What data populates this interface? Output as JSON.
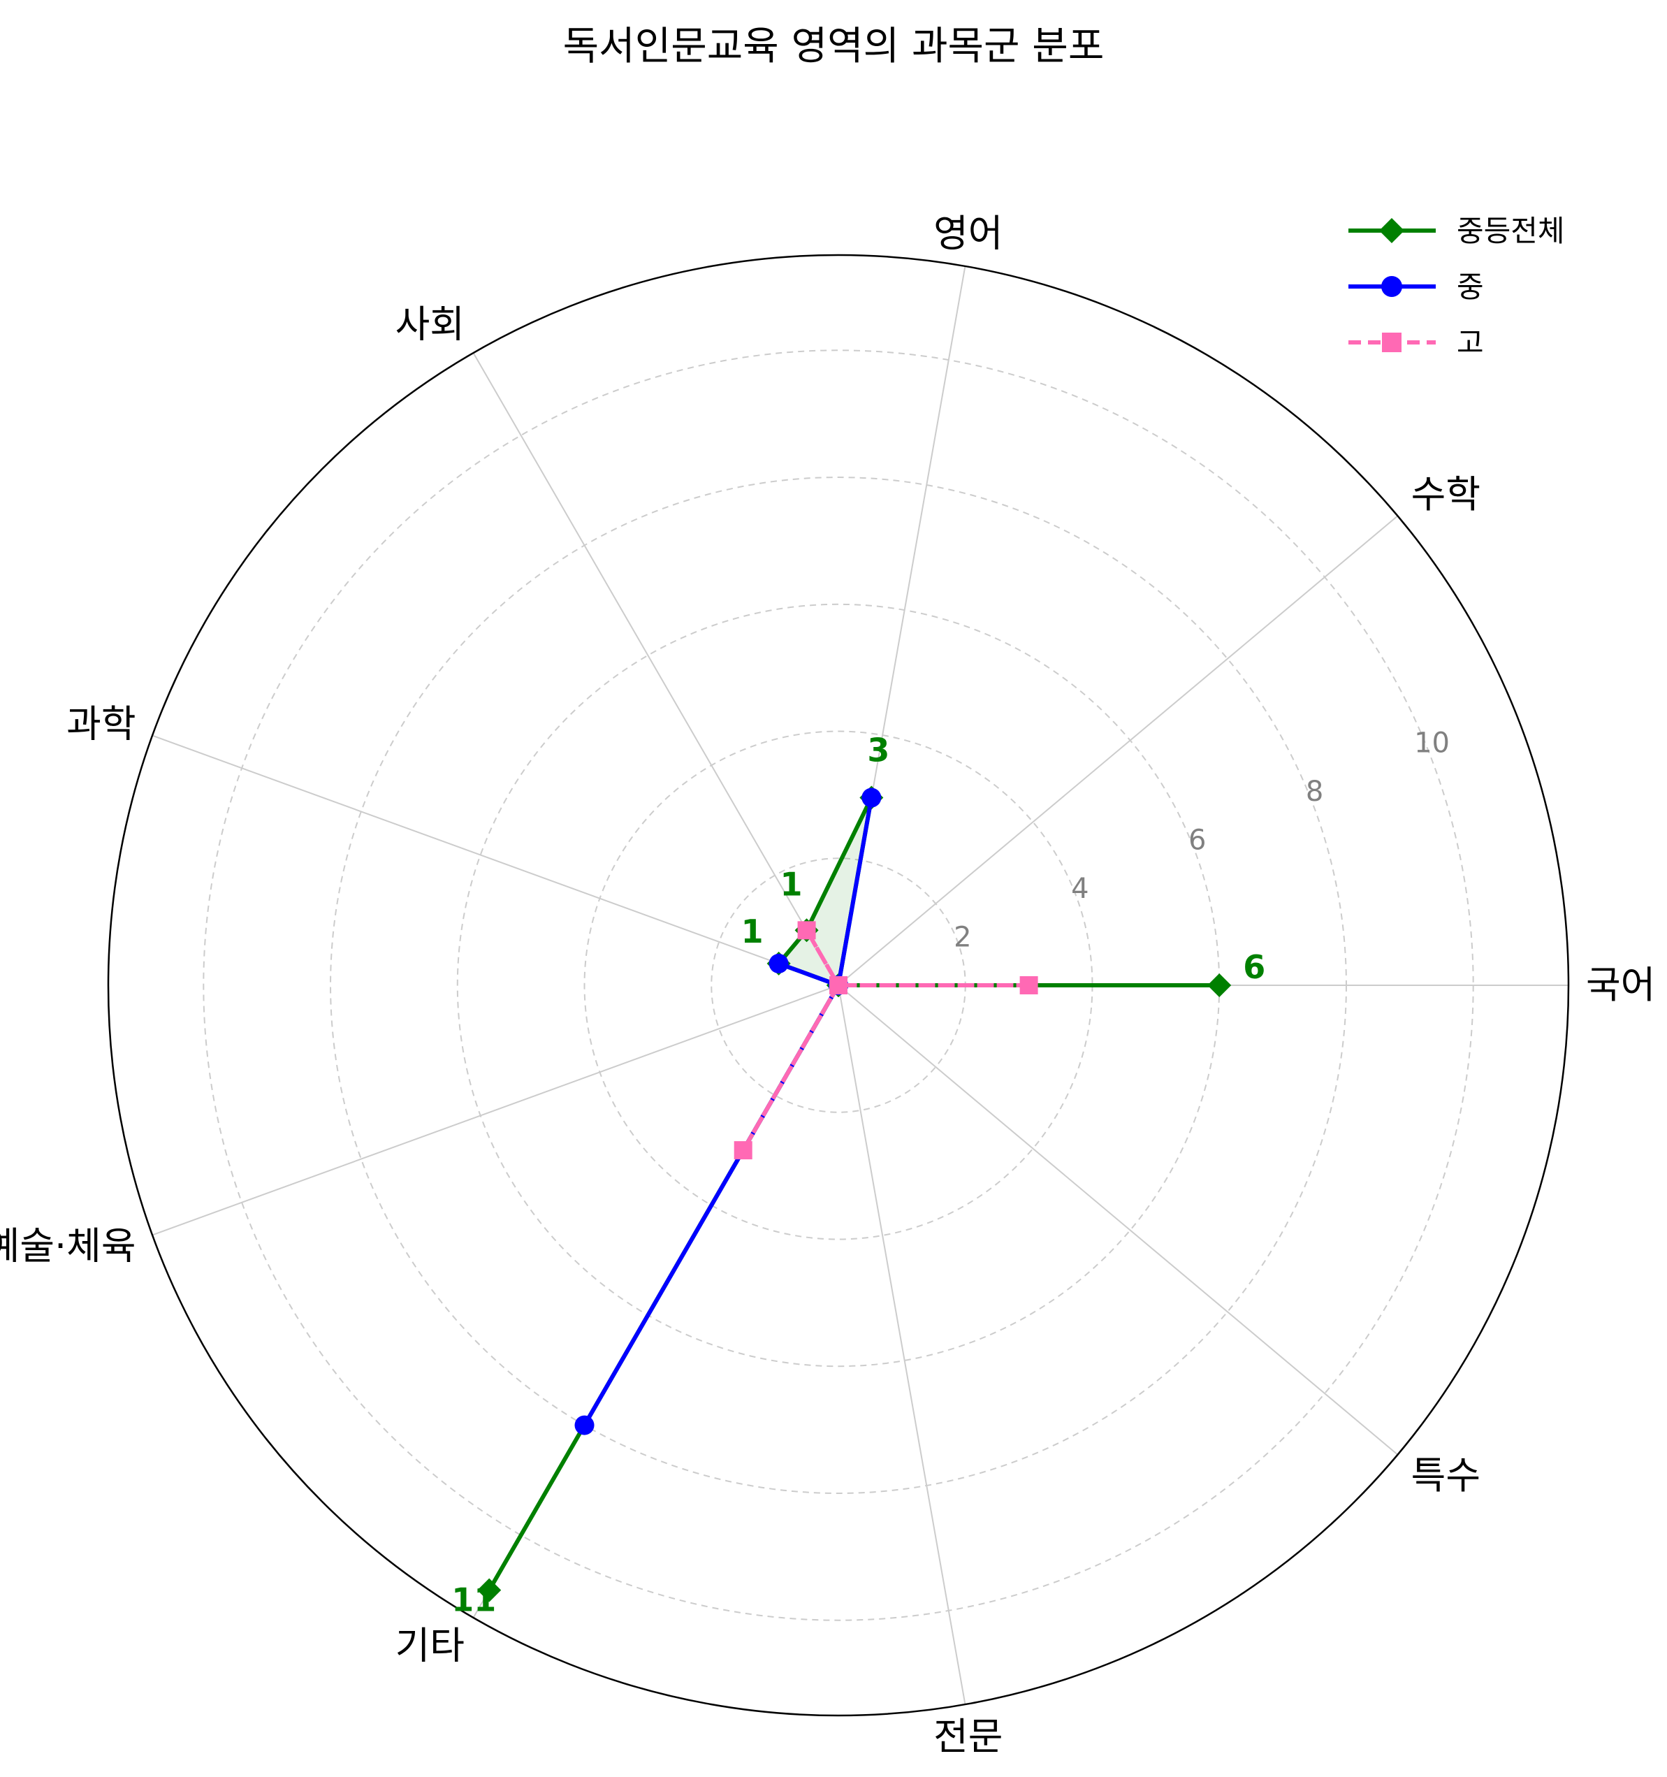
{
  "chart_data": {
    "type": "radar",
    "title": "독서인문교육 영역의 과목군 분포",
    "categories": [
      "국어",
      "수학",
      "영어",
      "사회",
      "과학",
      "예술·체육",
      "기타",
      "전문",
      "특수"
    ],
    "rmax": 11.5,
    "rticks": [
      2,
      4,
      6,
      8,
      10
    ],
    "rtick_labels": [
      "2",
      "4",
      "6",
      "8",
      "10"
    ],
    "grid": true,
    "legend_position": "top-right",
    "series": [
      {
        "name": "중등전체",
        "values": [
          6,
          0,
          3,
          1,
          1,
          0,
          11,
          0,
          0
        ],
        "color": "#008000",
        "marker": "diamond",
        "style": "solid",
        "fill": true
      },
      {
        "name": "중",
        "values": [
          0,
          0,
          3,
          0,
          1,
          0,
          8,
          0,
          0
        ],
        "color": "#0000ff",
        "marker": "circle",
        "style": "solid",
        "fill": false
      },
      {
        "name": "고",
        "values": [
          3,
          0,
          0,
          1,
          0,
          0,
          3,
          0,
          0
        ],
        "color": "#ff69b4",
        "marker": "square",
        "style": "dashed",
        "fill": false
      }
    ],
    "data_labels": [
      {
        "category": "국어",
        "text": "6"
      },
      {
        "category": "영어",
        "text": "3"
      },
      {
        "category": "사회",
        "text": "1"
      },
      {
        "category": "과학",
        "text": "1"
      },
      {
        "category": "기타",
        "text": "11"
      }
    ]
  }
}
